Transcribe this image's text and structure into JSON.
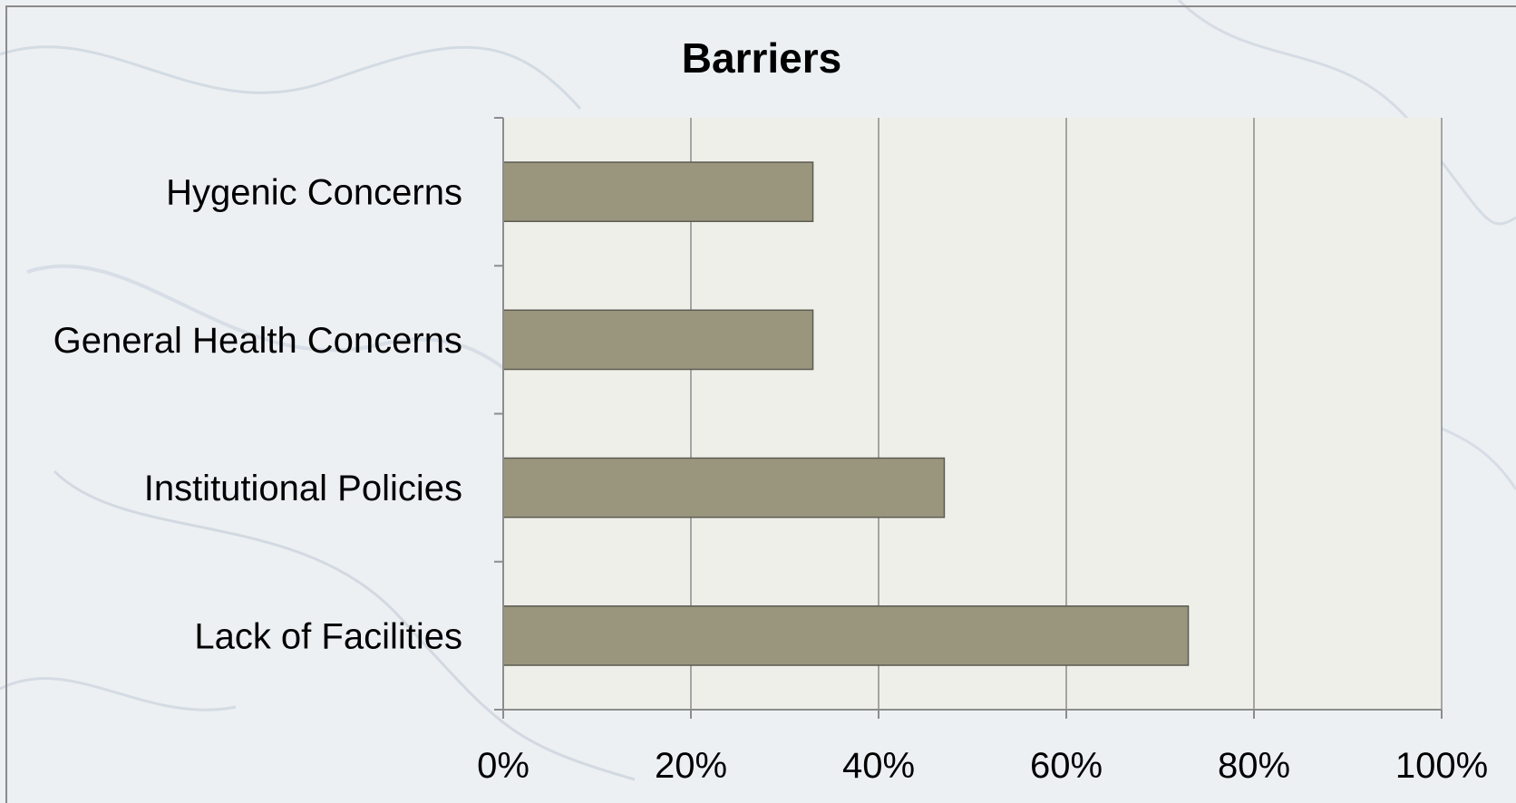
{
  "chart_data": {
    "type": "bar",
    "orientation": "horizontal",
    "title": "Barriers",
    "xlabel": "",
    "ylabel": "",
    "categories": [
      "Hygenic Concerns",
      "General Health Concerns",
      "Institutional Policies",
      "Lack of Facilities"
    ],
    "values": [
      0.33,
      0.33,
      0.47,
      0.73
    ],
    "xlim": [
      0,
      1
    ],
    "xticks": [
      0,
      0.2,
      0.4,
      0.6,
      0.8,
      1.0
    ],
    "xtick_labels": [
      "0%",
      "20%",
      "40%",
      "60%",
      "80%",
      "100%"
    ],
    "grid": true,
    "legend": "none",
    "bar_color": "#9a967e",
    "bar_edge_color": "#5c5b50",
    "plot_background": "#efefea"
  }
}
